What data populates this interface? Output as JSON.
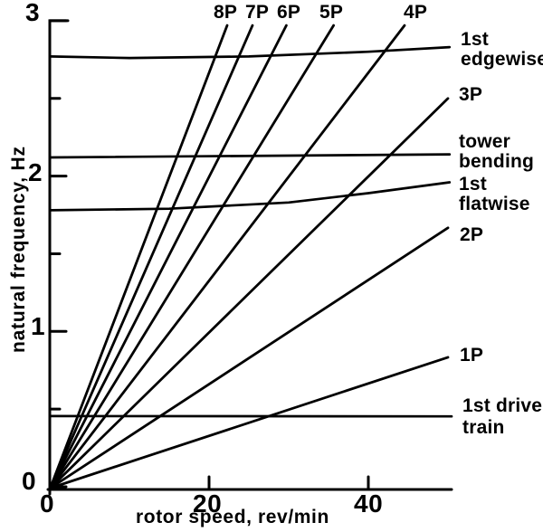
{
  "figure": {
    "background": "#ffffff",
    "ink": "#000000"
  },
  "chart_data": {
    "type": "line",
    "title": "",
    "xlabel": "rotor speed, rev/min",
    "ylabel": "natural frequency, Hz",
    "xlim": [
      0,
      50.5
    ],
    "ylim": [
      0,
      3
    ],
    "grid": false,
    "legend_position": "inline-right",
    "x_ticks": [
      {
        "v": 0,
        "label": "0"
      },
      {
        "v": 20,
        "label": "20"
      },
      {
        "v": 40,
        "label": "40"
      }
    ],
    "y_ticks_major": [
      {
        "v": 0,
        "label": "0"
      },
      {
        "v": 1,
        "label": "1"
      },
      {
        "v": 2,
        "label": "2"
      },
      {
        "v": 3,
        "label": "3"
      }
    ],
    "y_ticks_minor": [
      0.5,
      1.5,
      2.5
    ],
    "per_rev_series": [
      {
        "name": "1P",
        "order": 1,
        "slope_hz_per_rpm": 0.0167
      },
      {
        "name": "2P",
        "order": 2,
        "slope_hz_per_rpm": 0.0333
      },
      {
        "name": "3P",
        "order": 3,
        "slope_hz_per_rpm": 0.05
      },
      {
        "name": "4P",
        "order": 4,
        "slope_hz_per_rpm": 0.0667
      },
      {
        "name": "5P",
        "order": 5,
        "slope_hz_per_rpm": 0.0833
      },
      {
        "name": "6P",
        "order": 6,
        "slope_hz_per_rpm": 0.1
      },
      {
        "name": "7P",
        "order": 7,
        "slope_hz_per_rpm": 0.1167
      },
      {
        "name": "8P",
        "order": 8,
        "slope_hz_per_rpm": 0.1333
      }
    ],
    "mode_series": [
      {
        "name": "1st edgewise",
        "label": "1st\nedgewise",
        "points": [
          [
            0,
            2.77
          ],
          [
            10,
            2.76
          ],
          [
            25,
            2.77
          ],
          [
            40,
            2.8
          ],
          [
            50.2,
            2.83
          ]
        ]
      },
      {
        "name": "tower bending",
        "label": "tower\nbending",
        "points": [
          [
            0,
            2.12
          ],
          [
            50.2,
            2.14
          ]
        ]
      },
      {
        "name": "1st flatwise",
        "label": "1st\nflatwise",
        "points": [
          [
            0,
            1.78
          ],
          [
            15,
            1.79
          ],
          [
            30,
            1.83
          ],
          [
            40,
            1.89
          ],
          [
            50.2,
            1.96
          ]
        ]
      },
      {
        "name": "1st drive train",
        "label": "1st drive\ntrain",
        "points": [
          [
            0,
            0.455
          ],
          [
            50.45,
            0.453
          ]
        ]
      }
    ]
  }
}
